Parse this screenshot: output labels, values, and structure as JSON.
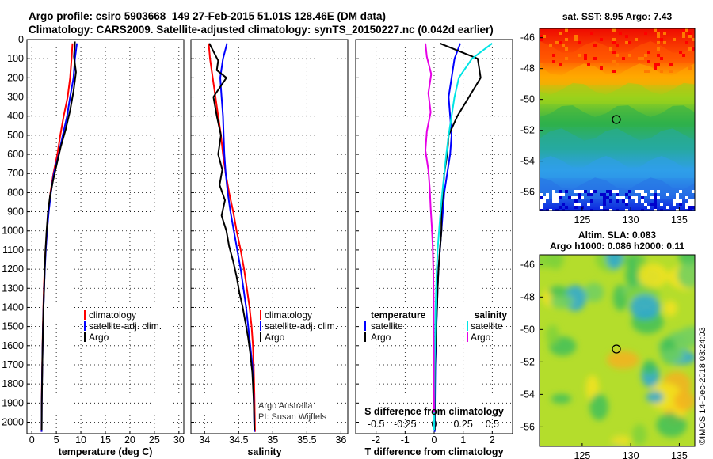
{
  "header": {
    "title_line1": "Argo profile: csiro 5903668_149 27-Feb-2015 51.01S 128.46E (DM data)",
    "title_line2": "Climatology: CARS2009. Satellite-adjusted climatology: synTS_20150227.nc (0.042d earlier)"
  },
  "depth_ticks": [
    "0",
    "100",
    "200",
    "300",
    "400",
    "500",
    "600",
    "700",
    "800",
    "900",
    "1000",
    "1100",
    "1200",
    "1300",
    "1400",
    "1500",
    "1600",
    "1700",
    "1800",
    "1900",
    "2000"
  ],
  "chart_data": [
    {
      "type": "line",
      "panel": "temperature",
      "xlabel": "temperature (deg C)",
      "xlim": [
        -1,
        31
      ],
      "ylim": [
        0,
        2060
      ],
      "x_ticks": [
        "0",
        "5",
        "10",
        "15",
        "20",
        "25",
        "30"
      ],
      "legend": {
        "entries": [
          "climatology",
          "satellite-adj. clim.",
          "Argo"
        ]
      },
      "series": [
        {
          "name": "climatology",
          "color": "#ff0000",
          "x": [
            8.3,
            8.1,
            7.8,
            7.3,
            6.5,
            5.8,
            5.2,
            4.4,
            3.8,
            3.4,
            3.1,
            2.8,
            2.6,
            2.45,
            2.35,
            2.25,
            2.18,
            2.12,
            2.05,
            2.0,
            1.98
          ],
          "y": [
            20,
            100,
            200,
            300,
            400,
            500,
            600,
            700,
            800,
            900,
            1000,
            1100,
            1200,
            1300,
            1400,
            1500,
            1600,
            1700,
            1800,
            1900,
            2050
          ]
        },
        {
          "name": "satellite-adj. clim.",
          "color": "#0000ff",
          "x": [
            9.2,
            8.8,
            8.5,
            7.8,
            7.2,
            6.3,
            5.5,
            4.5,
            3.9,
            3.45,
            3.1,
            2.85,
            2.65,
            2.5,
            2.38,
            2.28,
            2.2,
            2.13,
            2.07,
            2.02,
            1.99
          ],
          "y": [
            20,
            100,
            200,
            300,
            400,
            500,
            600,
            700,
            800,
            900,
            1000,
            1100,
            1200,
            1300,
            1400,
            1500,
            1600,
            1700,
            1800,
            1900,
            2050
          ]
        },
        {
          "name": "Argo",
          "color": "#000000",
          "x": [
            8.8,
            8.6,
            9.0,
            8.5,
            7.8,
            6.9,
            5.9,
            5.1,
            4.3,
            3.7,
            3.3,
            3.0,
            2.78,
            2.62,
            2.5,
            2.38,
            2.28,
            2.2,
            2.14,
            2.08,
            2.03,
            2.0
          ],
          "y": [
            10,
            90,
            170,
            270,
            370,
            470,
            560,
            650,
            740,
            820,
            900,
            1000,
            1100,
            1200,
            1300,
            1400,
            1500,
            1600,
            1700,
            1800,
            1900,
            2040
          ]
        }
      ]
    },
    {
      "type": "line",
      "panel": "salinity",
      "xlabel": "salinity",
      "xlim": [
        33.8,
        36.1
      ],
      "ylim": [
        0,
        2060
      ],
      "x_ticks": [
        "34",
        "34.5",
        "35",
        "35.5",
        "36"
      ],
      "legend": {
        "entries": [
          "climatology",
          "satellite-adj. clim.",
          "Argo"
        ]
      },
      "annotation": [
        "Argo Australia",
        "PI: Susan Wijffels"
      ],
      "series": [
        {
          "name": "climatology",
          "color": "#ff0000",
          "x": [
            34.06,
            34.08,
            34.12,
            34.16,
            34.2,
            34.24,
            34.27,
            34.31,
            34.36,
            34.42,
            34.47,
            34.53,
            34.58,
            34.62,
            34.66,
            34.69,
            34.71,
            34.72,
            34.73,
            34.74
          ],
          "y": [
            20,
            100,
            200,
            300,
            400,
            500,
            600,
            700,
            800,
            900,
            1000,
            1100,
            1200,
            1300,
            1400,
            1500,
            1600,
            1700,
            1850,
            2050
          ]
        },
        {
          "name": "satellite-adj. clim.",
          "color": "#0000ff",
          "x": [
            34.33,
            34.27,
            34.23,
            34.25,
            34.27,
            34.28,
            34.29,
            34.31,
            34.34,
            34.38,
            34.43,
            34.48,
            34.53,
            34.57,
            34.61,
            34.64,
            34.67,
            34.7,
            34.72,
            34.73
          ],
          "y": [
            20,
            100,
            200,
            300,
            400,
            500,
            600,
            700,
            800,
            900,
            1000,
            1100,
            1200,
            1300,
            1400,
            1500,
            1600,
            1700,
            1850,
            2050
          ]
        },
        {
          "name": "Argo",
          "color": "#000000",
          "x": [
            34.07,
            34.2,
            34.18,
            34.32,
            34.13,
            34.18,
            34.24,
            34.2,
            34.26,
            34.22,
            34.3,
            34.25,
            34.32,
            34.36,
            34.42,
            34.47,
            34.51,
            34.56,
            34.6,
            34.64,
            34.67,
            34.7,
            34.72,
            34.73
          ],
          "y": [
            20,
            110,
            160,
            200,
            300,
            400,
            500,
            600,
            680,
            760,
            840,
            920,
            1000,
            1080,
            1160,
            1240,
            1320,
            1400,
            1480,
            1560,
            1640,
            1740,
            1880,
            2040
          ]
        }
      ]
    },
    {
      "type": "line",
      "panel": "difference",
      "xlabel": "T difference from climatology",
      "secondary_xlabel": "S difference from climatology",
      "xlim": [
        -2.7,
        2.7
      ],
      "ylim": [
        0,
        2060
      ],
      "x_ticks": [
        "-2",
        "-1",
        "0",
        "1",
        "2"
      ],
      "secondary_ticks": [
        "-0.5",
        "-0.25",
        "0",
        "0.25",
        "0.5"
      ],
      "legend_left": {
        "heading": "temperature",
        "entries": [
          "satellite",
          "Argo"
        ]
      },
      "legend_right": {
        "heading": "salinity",
        "entries": [
          "satellite",
          "Argo"
        ]
      },
      "series": [
        {
          "name": "satellite",
          "color": "#0000ff",
          "x": [
            0.9,
            0.7,
            0.6,
            0.5,
            0.55,
            0.6,
            0.55,
            0.45,
            0.35,
            0.3,
            0.25,
            0.2,
            0.15,
            0.12,
            0.1,
            0.08,
            0.06,
            0.04,
            0.03,
            0.02
          ],
          "y": [
            20,
            100,
            200,
            300,
            400,
            500,
            600,
            700,
            800,
            900,
            1000,
            1100,
            1200,
            1300,
            1400,
            1500,
            1600,
            1700,
            1850,
            2050
          ]
        },
        {
          "name": "Argo",
          "color": "#000000",
          "x": [
            0.2,
            1.5,
            1.6,
            1.2,
            0.8,
            0.5,
            0.45,
            0.35,
            0.3,
            0.25,
            0.25,
            0.2,
            0.15,
            0.12,
            0.1,
            0.07,
            0.05,
            0.03,
            0.02,
            0.02
          ],
          "y": [
            20,
            100,
            200,
            300,
            400,
            500,
            600,
            700,
            800,
            900,
            1000,
            1100,
            1200,
            1300,
            1400,
            1500,
            1600,
            1700,
            1850,
            2040
          ]
        },
        {
          "name": "satellite",
          "color": "#00e5e5",
          "x": [
            2.0,
            1.3,
            0.85,
            0.7,
            0.6,
            0.5,
            0.42,
            0.35,
            0.28,
            0.22,
            0.17,
            0.12,
            0.09,
            0.07,
            0.05,
            0.04,
            0.03,
            0.02,
            0.01,
            0.0
          ],
          "y": [
            20,
            100,
            200,
            300,
            400,
            500,
            600,
            700,
            800,
            900,
            1000,
            1100,
            1200,
            1300,
            1400,
            1500,
            1600,
            1700,
            1850,
            2040
          ]
        },
        {
          "name": "Argo",
          "color": "#e600e6",
          "x": [
            -0.3,
            -0.25,
            -0.1,
            -0.2,
            -0.12,
            -0.25,
            -0.3,
            -0.2,
            -0.15,
            -0.12,
            -0.08,
            -0.05,
            -0.03,
            -0.02,
            -0.02,
            -0.01,
            -0.01,
            0.0
          ],
          "y": [
            20,
            90,
            180,
            280,
            380,
            480,
            580,
            680,
            780,
            880,
            980,
            1080,
            1200,
            1350,
            1500,
            1650,
            1800,
            1950
          ]
        }
      ]
    },
    {
      "type": "heatmap",
      "panel": "sst_map",
      "title": "sat. SST: 8.95 Argo: 7.43",
      "x_ticks": [
        "125",
        "130",
        "135"
      ],
      "y_ticks": [
        "-46",
        "-48",
        "-50",
        "-52",
        "-54",
        "-56"
      ]
    },
    {
      "type": "heatmap",
      "panel": "sla_map",
      "title_line1": "Altim. SLA: 0.083",
      "title_line2": "Argo h1000: 0.086 h2000: 0.11",
      "x_ticks": [
        "125",
        "130",
        "135"
      ],
      "y_ticks": [
        "-46",
        "-48",
        "-50",
        "-52",
        "-54",
        "-56"
      ],
      "credit": "©IMOS 14-Dec-2018 03:24:03"
    }
  ]
}
